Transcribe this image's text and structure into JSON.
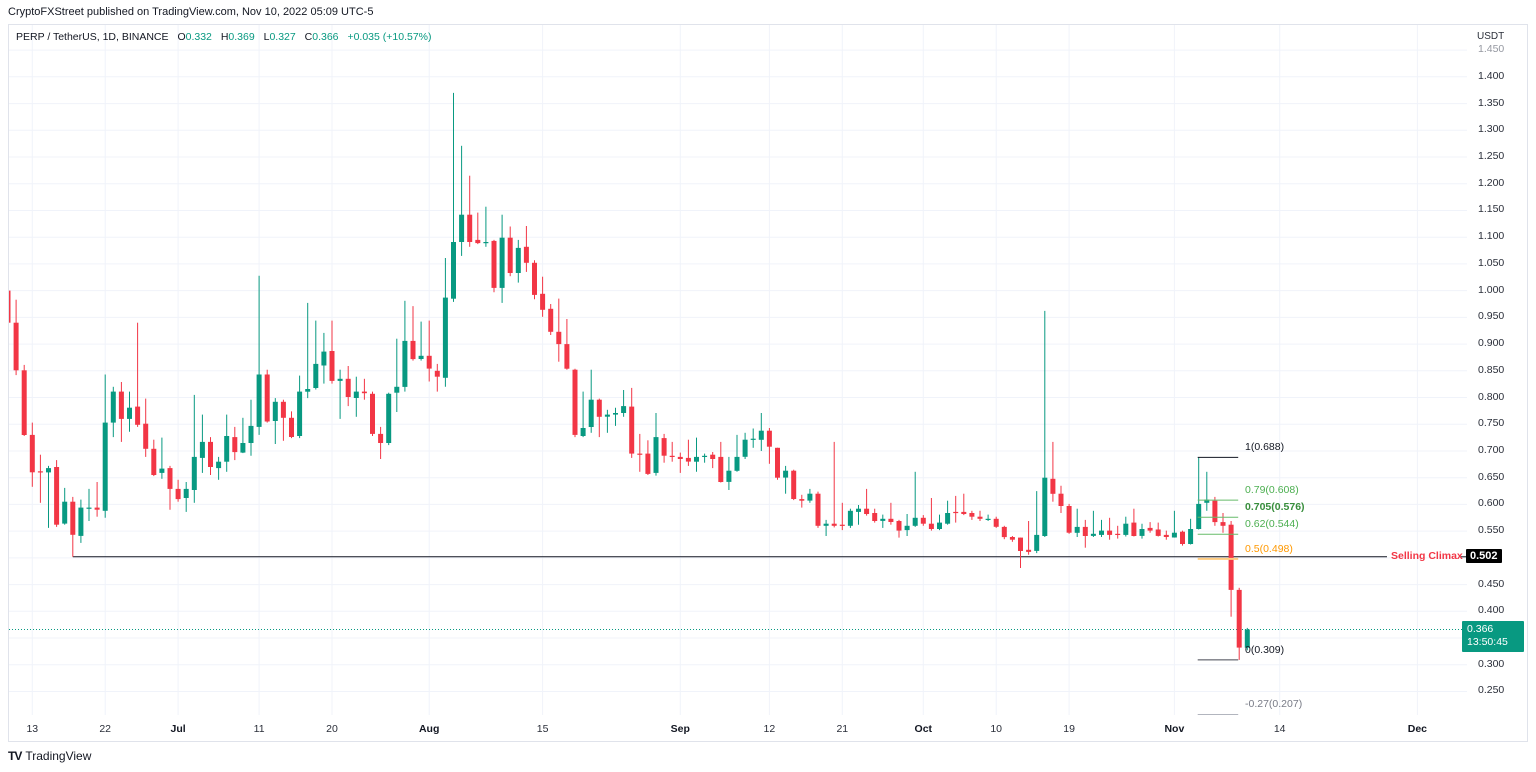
{
  "publisher_line": "CryptoFXStreet published on TradingView.com, Nov 10, 2022 05:09 UTC-5",
  "legend": {
    "symbol": "PERP / TetherUS, 1D, BINANCE",
    "o_label": "O",
    "o": "0.332",
    "h_label": "H",
    "h": "0.369",
    "l_label": "L",
    "l": "0.327",
    "c_label": "C",
    "c": "0.366",
    "change": "+0.035 (+10.57%)"
  },
  "price_scale": {
    "currency": "USDT",
    "ticks": [
      "1.450",
      "1.400",
      "1.350",
      "1.300",
      "1.250",
      "1.200",
      "1.150",
      "1.100",
      "1.050",
      "1.000",
      "0.950",
      "0.900",
      "0.850",
      "0.800",
      "0.750",
      "0.700",
      "0.650",
      "0.600",
      "0.550",
      "0.450",
      "0.400",
      "0.300",
      "0.250"
    ],
    "faded_ticks": [
      "1.450"
    ]
  },
  "time_axis": {
    "ticks": [
      {
        "label": "13",
        "index": 3,
        "bold": false
      },
      {
        "label": "22",
        "index": 12,
        "bold": false
      },
      {
        "label": "Jul",
        "index": 21,
        "bold": true
      },
      {
        "label": "11",
        "index": 31,
        "bold": false
      },
      {
        "label": "20",
        "index": 40,
        "bold": false
      },
      {
        "label": "Aug",
        "index": 52,
        "bold": true
      },
      {
        "label": "15",
        "index": 66,
        "bold": false
      },
      {
        "label": "Sep",
        "index": 83,
        "bold": true
      },
      {
        "label": "12",
        "index": 94,
        "bold": false
      },
      {
        "label": "21",
        "index": 103,
        "bold": false
      },
      {
        "label": "Oct",
        "index": 113,
        "bold": true
      },
      {
        "label": "10",
        "index": 122,
        "bold": false
      },
      {
        "label": "19",
        "index": 131,
        "bold": false
      },
      {
        "label": "Nov",
        "index": 144,
        "bold": true
      },
      {
        "label": "14",
        "index": 157,
        "bold": false
      },
      {
        "label": "Dec",
        "index": 174,
        "bold": true
      }
    ]
  },
  "current_price": {
    "value": "0.366",
    "countdown": "13:50:45",
    "price": 0.366
  },
  "selling_climax": {
    "label": "Selling Climax",
    "value": "0.502",
    "price": 0.502,
    "start_index": 8
  },
  "fibonacci": {
    "start_index": 147,
    "end_index": 152,
    "levels": [
      {
        "label": "1(0.688)",
        "price": 0.688,
        "color": "#131722",
        "line": "#131722",
        "bold": false
      },
      {
        "label": "0.79(0.608)",
        "price": 0.608,
        "color": "#4caf50",
        "line": "#66bb6a",
        "bold": false
      },
      {
        "label": "0.705(0.576)",
        "price": 0.576,
        "color": "#388e3c",
        "line": "#66bb6a",
        "bold": true
      },
      {
        "label": "0.62(0.544)",
        "price": 0.544,
        "color": "#4caf50",
        "line": "#66bb6a",
        "bold": false
      },
      {
        "label": "0.5(0.498)",
        "price": 0.498,
        "color": "#ff9800",
        "line": "#ffcc80",
        "bold": false
      },
      {
        "label": "0(0.309)",
        "price": 0.309,
        "color": "#131722",
        "line": "#434651",
        "bold": false
      },
      {
        "label": "-0.27(0.207)",
        "price": 0.207,
        "color": "#787b86",
        "line": "#b2b5be",
        "bold": false
      }
    ]
  },
  "footer": {
    "brand": "TradingView",
    "logo_glyph": "TV"
  },
  "colors": {
    "up": "#089981",
    "down": "#f23645",
    "grid": "#f0f3fa",
    "text": "#131722",
    "selling_climax": "#f23645"
  },
  "chart_data": {
    "type": "bar",
    "subtype": "candlestick",
    "title": "PERP / TetherUS, 1D, BINANCE",
    "xlabel": "",
    "ylabel": "USDT",
    "ylim": [
      0.206,
      1.497
    ],
    "grid": true,
    "start_date": "2022-06-10",
    "interval": "1D",
    "columns": [
      "date",
      "open",
      "high",
      "low",
      "close"
    ],
    "ohlc": [
      [
        "06-10",
        1.0,
        1.052,
        0.935,
        0.94
      ],
      [
        "06-11",
        0.94,
        0.983,
        0.842,
        0.851
      ],
      [
        "06-12",
        0.851,
        0.861,
        0.728,
        0.73
      ],
      [
        "06-13",
        0.73,
        0.753,
        0.633,
        0.66
      ],
      [
        "06-14",
        0.662,
        0.693,
        0.603,
        0.66
      ],
      [
        "06-15",
        0.66,
        0.672,
        0.556,
        0.668
      ],
      [
        "06-16",
        0.67,
        0.683,
        0.558,
        0.562
      ],
      [
        "06-17",
        0.564,
        0.631,
        0.562,
        0.605
      ],
      [
        "06-18",
        0.605,
        0.614,
        0.502,
        0.543
      ],
      [
        "06-19",
        0.541,
        0.609,
        0.528,
        0.594
      ],
      [
        "06-20",
        0.592,
        0.629,
        0.569,
        0.594
      ],
      [
        "06-21",
        0.594,
        0.642,
        0.577,
        0.59
      ],
      [
        "06-22",
        0.588,
        0.843,
        0.575,
        0.753
      ],
      [
        "06-23",
        0.753,
        0.82,
        0.726,
        0.811
      ],
      [
        "06-24",
        0.811,
        0.829,
        0.717,
        0.76
      ],
      [
        "06-25",
        0.76,
        0.811,
        0.736,
        0.781
      ],
      [
        "06-26",
        0.783,
        0.94,
        0.745,
        0.749
      ],
      [
        "06-27",
        0.751,
        0.798,
        0.689,
        0.704
      ],
      [
        "06-28",
        0.704,
        0.721,
        0.653,
        0.655
      ],
      [
        "06-29",
        0.659,
        0.725,
        0.648,
        0.667
      ],
      [
        "06-30",
        0.668,
        0.672,
        0.59,
        0.629
      ],
      [
        "07-01",
        0.629,
        0.646,
        0.605,
        0.61
      ],
      [
        "07-02",
        0.612,
        0.642,
        0.586,
        0.629
      ],
      [
        "07-03",
        0.627,
        0.805,
        0.603,
        0.689
      ],
      [
        "07-04",
        0.687,
        0.768,
        0.659,
        0.717
      ],
      [
        "07-05",
        0.717,
        0.726,
        0.655,
        0.67
      ],
      [
        "07-06",
        0.668,
        0.689,
        0.646,
        0.68
      ],
      [
        "07-07",
        0.68,
        0.768,
        0.661,
        0.728
      ],
      [
        "07-08",
        0.726,
        0.745,
        0.683,
        0.698
      ],
      [
        "07-09",
        0.697,
        0.762,
        0.696,
        0.715
      ],
      [
        "07-10",
        0.715,
        0.796,
        0.691,
        0.747
      ],
      [
        "07-11",
        0.745,
        1.028,
        0.73,
        0.843
      ],
      [
        "07-12",
        0.843,
        0.852,
        0.753,
        0.755
      ],
      [
        "07-13",
        0.756,
        0.799,
        0.713,
        0.792
      ],
      [
        "07-14",
        0.792,
        0.796,
        0.719,
        0.762
      ],
      [
        "07-15",
        0.762,
        0.774,
        0.724,
        0.726
      ],
      [
        "07-16",
        0.728,
        0.841,
        0.724,
        0.811
      ],
      [
        "07-17",
        0.811,
        0.977,
        0.799,
        0.816
      ],
      [
        "07-18",
        0.818,
        0.944,
        0.815,
        0.863
      ],
      [
        "07-19",
        0.86,
        0.921,
        0.826,
        0.886
      ],
      [
        "07-20",
        0.887,
        0.944,
        0.826,
        0.831
      ],
      [
        "07-21",
        0.831,
        0.852,
        0.76,
        0.835
      ],
      [
        "07-22",
        0.835,
        0.859,
        0.784,
        0.801
      ],
      [
        "07-23",
        0.799,
        0.839,
        0.764,
        0.811
      ],
      [
        "07-24",
        0.811,
        0.835,
        0.796,
        0.808
      ],
      [
        "07-25",
        0.807,
        0.811,
        0.728,
        0.732
      ],
      [
        "07-26",
        0.732,
        0.745,
        0.685,
        0.715
      ],
      [
        "07-27",
        0.715,
        0.809,
        0.711,
        0.807
      ],
      [
        "07-28",
        0.809,
        0.91,
        0.773,
        0.82
      ],
      [
        "07-29",
        0.82,
        0.981,
        0.811,
        0.906
      ],
      [
        "07-30",
        0.906,
        0.971,
        0.869,
        0.872
      ],
      [
        "07-31",
        0.872,
        0.942,
        0.869,
        0.878
      ],
      [
        "08-01",
        0.878,
        0.944,
        0.83,
        0.854
      ],
      [
        "08-02",
        0.85,
        0.863,
        0.811,
        0.839
      ],
      [
        "08-03",
        0.837,
        1.061,
        0.82,
        0.987
      ],
      [
        "08-04",
        0.985,
        1.37,
        0.979,
        1.091
      ],
      [
        "08-05",
        1.091,
        1.271,
        1.065,
        1.142
      ],
      [
        "08-06",
        1.142,
        1.215,
        1.082,
        1.091
      ],
      [
        "08-07",
        1.095,
        1.146,
        1.087,
        1.089
      ],
      [
        "08-08",
        1.089,
        1.157,
        1.082,
        1.091
      ],
      [
        "08-09",
        1.093,
        1.095,
        0.997,
        1.005
      ],
      [
        "08-10",
        1.005,
        1.142,
        0.977,
        1.099
      ],
      [
        "08-11",
        1.099,
        1.12,
        1.027,
        1.033
      ],
      [
        "08-12",
        1.033,
        1.095,
        1.015,
        1.08
      ],
      [
        "08-13",
        1.082,
        1.121,
        1.035,
        1.052
      ],
      [
        "08-14",
        1.052,
        1.057,
        0.984,
        0.992
      ],
      [
        "08-15",
        0.994,
        1.026,
        0.951,
        0.964
      ],
      [
        "08-16",
        0.966,
        0.975,
        0.917,
        0.923
      ],
      [
        "08-17",
        0.923,
        0.985,
        0.867,
        0.9
      ],
      [
        "08-18",
        0.9,
        0.947,
        0.852,
        0.854
      ],
      [
        "08-19",
        0.852,
        0.854,
        0.726,
        0.73
      ],
      [
        "08-20",
        0.728,
        0.811,
        0.726,
        0.743
      ],
      [
        "08-21",
        0.745,
        0.852,
        0.734,
        0.796
      ],
      [
        "08-22",
        0.796,
        0.798,
        0.726,
        0.764
      ],
      [
        "08-23",
        0.764,
        0.777,
        0.734,
        0.768
      ],
      [
        "08-24",
        0.768,
        0.781,
        0.747,
        0.771
      ],
      [
        "08-25",
        0.771,
        0.814,
        0.764,
        0.784
      ],
      [
        "08-26",
        0.783,
        0.818,
        0.687,
        0.695
      ],
      [
        "08-27",
        0.695,
        0.732,
        0.661,
        0.693
      ],
      [
        "08-28",
        0.695,
        0.72,
        0.655,
        0.657
      ],
      [
        "08-29",
        0.659,
        0.771,
        0.654,
        0.726
      ],
      [
        "08-30",
        0.724,
        0.732,
        0.678,
        0.691
      ],
      [
        "08-31",
        0.691,
        0.717,
        0.68,
        0.689
      ],
      [
        "09-01",
        0.689,
        0.697,
        0.659,
        0.685
      ],
      [
        "09-02",
        0.687,
        0.721,
        0.672,
        0.68
      ],
      [
        "09-03",
        0.68,
        0.725,
        0.661,
        0.689
      ],
      [
        "09-04",
        0.689,
        0.695,
        0.678,
        0.691
      ],
      [
        "09-05",
        0.693,
        0.698,
        0.668,
        0.685
      ],
      [
        "09-06",
        0.689,
        0.717,
        0.641,
        0.642
      ],
      [
        "09-07",
        0.642,
        0.689,
        0.627,
        0.663
      ],
      [
        "09-08",
        0.663,
        0.73,
        0.661,
        0.689
      ],
      [
        "09-09",
        0.689,
        0.734,
        0.685,
        0.721
      ],
      [
        "09-10",
        0.721,
        0.742,
        0.706,
        0.723
      ],
      [
        "09-11",
        0.721,
        0.771,
        0.7,
        0.738
      ],
      [
        "09-12",
        0.738,
        0.743,
        0.676,
        0.708
      ],
      [
        "09-13",
        0.706,
        0.706,
        0.646,
        0.65
      ],
      [
        "09-14",
        0.65,
        0.672,
        0.62,
        0.663
      ],
      [
        "09-15",
        0.663,
        0.665,
        0.608,
        0.61
      ],
      [
        "09-16",
        0.61,
        0.618,
        0.594,
        0.607
      ],
      [
        "09-17",
        0.607,
        0.629,
        0.603,
        0.62
      ],
      [
        "09-18",
        0.62,
        0.624,
        0.556,
        0.56
      ],
      [
        "09-19",
        0.56,
        0.571,
        0.541,
        0.564
      ],
      [
        "09-20",
        0.564,
        0.717,
        0.557,
        0.56
      ],
      [
        "09-21",
        0.562,
        0.603,
        0.552,
        0.56
      ],
      [
        "09-22",
        0.56,
        0.592,
        0.556,
        0.588
      ],
      [
        "09-23",
        0.586,
        0.599,
        0.562,
        0.592
      ],
      [
        "09-24",
        0.592,
        0.629,
        0.579,
        0.582
      ],
      [
        "09-25",
        0.584,
        0.592,
        0.566,
        0.569
      ],
      [
        "09-26",
        0.569,
        0.581,
        0.556,
        0.573
      ],
      [
        "09-27",
        0.573,
        0.603,
        0.562,
        0.567
      ],
      [
        "09-28",
        0.569,
        0.571,
        0.538,
        0.551
      ],
      [
        "09-29",
        0.552,
        0.582,
        0.541,
        0.56
      ],
      [
        "09-30",
        0.56,
        0.661,
        0.558,
        0.575
      ],
      [
        "10-01",
        0.575,
        0.58,
        0.56,
        0.564
      ],
      [
        "10-02",
        0.564,
        0.612,
        0.551,
        0.554
      ],
      [
        "10-03",
        0.554,
        0.581,
        0.552,
        0.566
      ],
      [
        "10-04",
        0.564,
        0.607,
        0.562,
        0.584
      ],
      [
        "10-05",
        0.586,
        0.616,
        0.566,
        0.584
      ],
      [
        "10-06",
        0.586,
        0.62,
        0.58,
        0.582
      ],
      [
        "10-07",
        0.584,
        0.588,
        0.571,
        0.577
      ],
      [
        "10-08",
        0.577,
        0.588,
        0.569,
        0.573
      ],
      [
        "10-09",
        0.571,
        0.581,
        0.569,
        0.573
      ],
      [
        "10-10",
        0.573,
        0.577,
        0.556,
        0.558
      ],
      [
        "10-11",
        0.558,
        0.56,
        0.535,
        0.539
      ],
      [
        "10-12",
        0.539,
        0.541,
        0.53,
        0.534
      ],
      [
        "10-13",
        0.538,
        0.538,
        0.481,
        0.513
      ],
      [
        "10-14",
        0.515,
        0.569,
        0.506,
        0.511
      ],
      [
        "10-15",
        0.513,
        0.625,
        0.509,
        0.543
      ],
      [
        "10-16",
        0.541,
        0.962,
        0.539,
        0.65
      ],
      [
        "10-17",
        0.648,
        0.717,
        0.605,
        0.62
      ],
      [
        "10-18",
        0.62,
        0.635,
        0.584,
        0.597
      ],
      [
        "10-19",
        0.597,
        0.601,
        0.545,
        0.547
      ],
      [
        "10-20",
        0.547,
        0.592,
        0.539,
        0.558
      ],
      [
        "10-21",
        0.558,
        0.571,
        0.519,
        0.541
      ],
      [
        "10-22",
        0.541,
        0.588,
        0.539,
        0.545
      ],
      [
        "10-23",
        0.543,
        0.571,
        0.539,
        0.551
      ],
      [
        "10-24",
        0.551,
        0.575,
        0.534,
        0.543
      ],
      [
        "10-25",
        0.545,
        0.56,
        0.536,
        0.543
      ],
      [
        "10-26",
        0.543,
        0.577,
        0.54,
        0.564
      ],
      [
        "10-27",
        0.566,
        0.592,
        0.54,
        0.541
      ],
      [
        "10-28",
        0.541,
        0.564,
        0.536,
        0.554
      ],
      [
        "10-29",
        0.556,
        0.567,
        0.547,
        0.551
      ],
      [
        "10-30",
        0.553,
        0.566,
        0.54,
        0.541
      ],
      [
        "10-31",
        0.543,
        0.551,
        0.534,
        0.539
      ],
      [
        "11-01",
        0.538,
        0.588,
        0.538,
        0.547
      ],
      [
        "11-02",
        0.549,
        0.551,
        0.523,
        0.526
      ],
      [
        "11-03",
        0.526,
        0.573,
        0.525,
        0.554
      ],
      [
        "11-04",
        0.554,
        0.688,
        0.553,
        0.601
      ],
      [
        "11-05",
        0.603,
        0.661,
        0.588,
        0.609
      ],
      [
        "11-06",
        0.607,
        0.614,
        0.56,
        0.567
      ],
      [
        "11-07",
        0.567,
        0.584,
        0.547,
        0.56
      ],
      [
        "11-08",
        0.562,
        0.569,
        0.39,
        0.44
      ],
      [
        "11-09",
        0.44,
        0.444,
        0.309,
        0.332
      ],
      [
        "11-10",
        0.332,
        0.369,
        0.327,
        0.366
      ]
    ],
    "annotations": [
      {
        "type": "horizontal_line",
        "label": "Selling Climax",
        "price": 0.502
      },
      {
        "type": "fib_retracement",
        "levels": [
          [
            "1",
            0.688
          ],
          [
            "0.79",
            0.608
          ],
          [
            "0.705",
            0.576
          ],
          [
            "0.62",
            0.544
          ],
          [
            "0.5",
            0.498
          ],
          [
            "0",
            0.309
          ],
          [
            "-0.27",
            0.207
          ]
        ]
      },
      {
        "type": "last_price",
        "price": 0.366
      }
    ]
  }
}
